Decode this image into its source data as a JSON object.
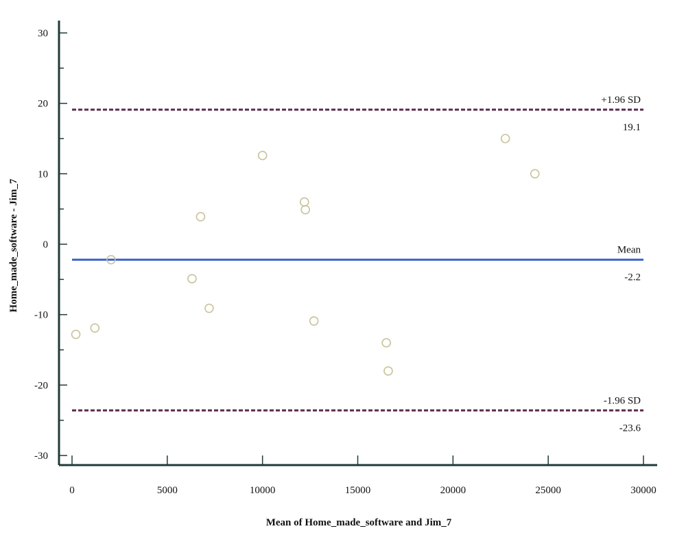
{
  "chart_data": {
    "type": "scatter",
    "xlabel": "Mean of Home_made_software and Jim_7",
    "ylabel": "Home_made_software - Jim_7",
    "xlim": [
      0,
      30000
    ],
    "ylim": [
      -30,
      30
    ],
    "x_ticks": [
      0,
      5000,
      10000,
      15000,
      20000,
      25000,
      30000
    ],
    "y_ticks": [
      -30,
      -20,
      -10,
      0,
      10,
      20,
      30
    ],
    "x_tick_labels": [
      "0",
      "5000",
      "10000",
      "15000",
      "20000",
      "25000",
      "30000"
    ],
    "y_tick_labels": [
      "-30",
      "-20",
      "-10",
      "0",
      "10",
      "20",
      "30"
    ],
    "grid": false,
    "points": [
      {
        "x": 200,
        "y": -12.8
      },
      {
        "x": 1200,
        "y": -11.9
      },
      {
        "x": 2050,
        "y": -2.2
      },
      {
        "x": 6300,
        "y": -4.9
      },
      {
        "x": 6750,
        "y": 3.9
      },
      {
        "x": 7200,
        "y": -9.1
      },
      {
        "x": 10000,
        "y": 12.6
      },
      {
        "x": 12200,
        "y": 6.0
      },
      {
        "x": 12250,
        "y": 4.9
      },
      {
        "x": 12700,
        "y": -10.9
      },
      {
        "x": 16500,
        "y": -14.0
      },
      {
        "x": 16600,
        "y": -18.0
      },
      {
        "x": 22750,
        "y": 15.0
      },
      {
        "x": 24300,
        "y": 10.0
      }
    ],
    "reference_lines": [
      {
        "name": "+1.96 SD",
        "value": 19.1,
        "value_label": "19.1",
        "style": "dashed",
        "color": "#5a2a4a"
      },
      {
        "name": "Mean",
        "value": -2.2,
        "value_label": "-2.2",
        "style": "solid",
        "color": "#3a62c8"
      },
      {
        "name": "-1.96 SD",
        "value": -23.6,
        "value_label": "-23.6",
        "style": "dashed",
        "color": "#5a2a4a"
      }
    ],
    "colors": {
      "axis": "#1f3a3a",
      "point_stroke": "#c9c29a"
    }
  }
}
